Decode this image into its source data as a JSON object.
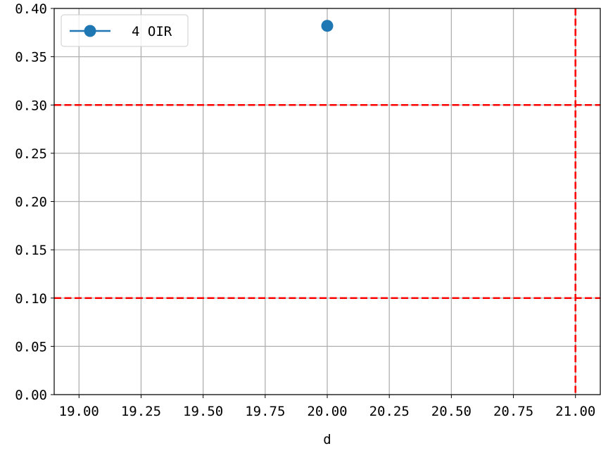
{
  "chart_data": {
    "type": "scatter",
    "title": "",
    "xlabel": "d",
    "ylabel": "",
    "xlim": [
      18.9,
      21.1
    ],
    "ylim": [
      0.0,
      0.4
    ],
    "x_ticks": [
      "19.00",
      "19.25",
      "19.50",
      "19.75",
      "20.00",
      "20.25",
      "20.50",
      "20.75",
      "21.00"
    ],
    "x_tick_values": [
      19.0,
      19.25,
      19.5,
      19.75,
      20.0,
      20.25,
      20.5,
      20.75,
      21.0
    ],
    "y_ticks": [
      "0.00",
      "0.05",
      "0.10",
      "0.15",
      "0.20",
      "0.25",
      "0.30",
      "0.35",
      "0.40"
    ],
    "y_tick_values": [
      0.0,
      0.05,
      0.1,
      0.15,
      0.2,
      0.25,
      0.3,
      0.35,
      0.4
    ],
    "grid": true,
    "legend_position": "top-left",
    "series": [
      {
        "name": "4 OIR",
        "color": "#1f77b4",
        "x": [
          20.0
        ],
        "y": [
          0.382
        ]
      }
    ],
    "reference_lines": [
      {
        "orientation": "horizontal",
        "value": 0.3,
        "color": "#ff0000",
        "style": "dashed"
      },
      {
        "orientation": "horizontal",
        "value": 0.1,
        "color": "#ff0000",
        "style": "dashed"
      },
      {
        "orientation": "vertical",
        "value": 21.0,
        "color": "#ff0000",
        "style": "dashed"
      }
    ]
  }
}
